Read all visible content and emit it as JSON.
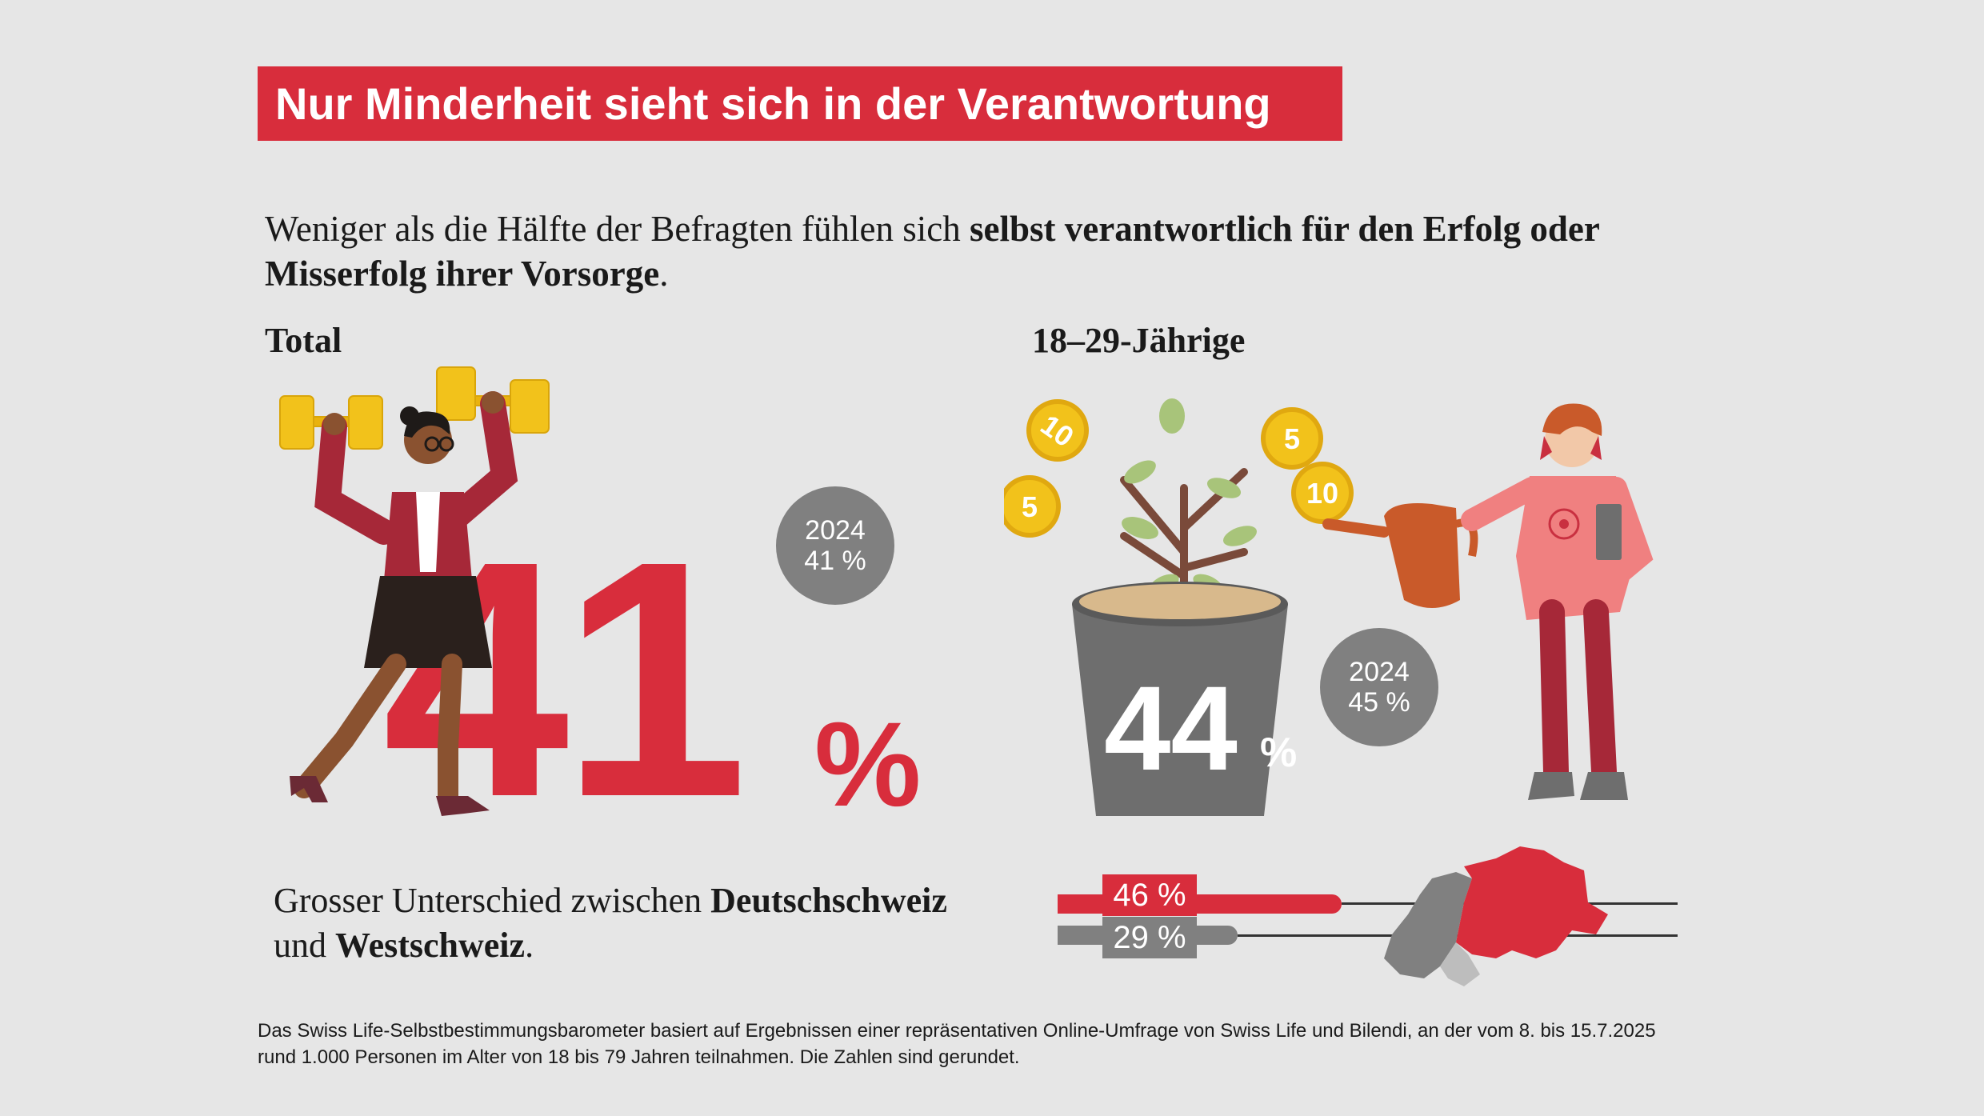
{
  "title": "Nur Minderheit sieht sich in der Verantwortung",
  "intro": {
    "plain": "Weniger als die Hälfte der Befragten fühlen sich ",
    "bold": "selbst verantwortlich für den Erfolg oder Misserfolg ihrer Vorsorge",
    "end": "."
  },
  "total": {
    "label": "Total",
    "value": "41",
    "unit": "%",
    "badge_year": "2024",
    "badge_value": "41 %"
  },
  "young": {
    "label": "18–29-Jährige",
    "value": "44",
    "unit": "%",
    "badge_year": "2024",
    "badge_value": "45 %",
    "coins": [
      "10",
      "5",
      "5",
      "10"
    ]
  },
  "regions": {
    "text_plain1": "Grosser Unterschied zwischen ",
    "text_bold1": "Deutschschweiz",
    "text_plain2": "und ",
    "text_bold2": "Westschweiz",
    "text_end": ".",
    "deutschschweiz": {
      "label": "46 %",
      "value": 46,
      "color": "#d82d3c"
    },
    "westschweiz": {
      "label": "29 %",
      "value": 29,
      "color": "#808080"
    }
  },
  "footnote": {
    "line1": "Das Swiss Life-Selbstbestimmungsbarometer basiert auf Ergebnissen einer repräsentativen Online-Umfrage von Swiss Life und Bilendi, an der vom 8. bis 15.7.2025",
    "line2": "rund 1.000 Personen im Alter von 18 bis 79 Jahren teilnahmen. Die Zahlen sind gerundet."
  },
  "colors": {
    "accent": "#d82d3c",
    "grey": "#808080",
    "background": "#e6e6e6"
  },
  "icons": {
    "woman": "woman-lifting-coin-dumbbells-illustration",
    "plant": "money-tree-in-pot-illustration",
    "gardener": "young-person-watering-illustration",
    "map": "switzerland-map-icon"
  }
}
